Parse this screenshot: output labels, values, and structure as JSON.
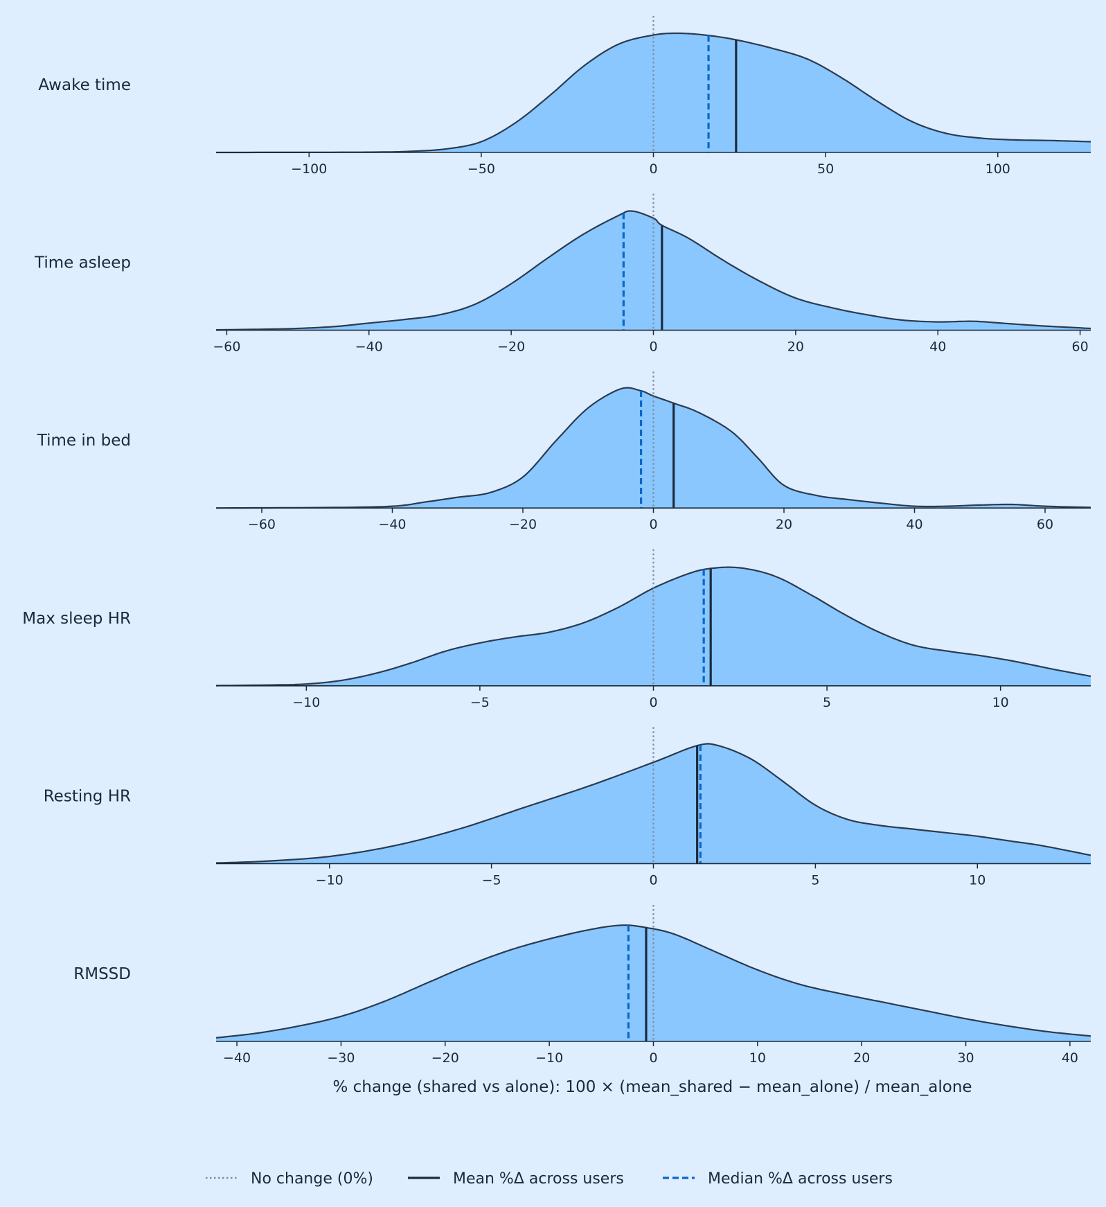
{
  "chart_data": {
    "type": "area",
    "subtype": "ridgeline-density",
    "xlabel": "% change (shared vs alone): 100 × (mean_shared − mean_alone) / mean_alone",
    "reference_line": {
      "x": 0,
      "label": "No change (0%)",
      "style": "dotted",
      "color": "#7f8c99"
    },
    "colors": {
      "fill": "#8ac7ff",
      "outline": "#2b3b50",
      "mean": "#1c2b3c",
      "median": "#0a67c9",
      "background": "#deeeff"
    },
    "legend": {
      "position": "bottom-center",
      "items": [
        {
          "label": "No change (0%)",
          "style": "dotted",
          "color": "#7f8c99"
        },
        {
          "label": "Mean %Δ across users",
          "style": "solid",
          "color": "#1c2b3c"
        },
        {
          "label": "Median %Δ across users",
          "style": "dashed",
          "color": "#0a67c9"
        }
      ]
    },
    "panels": [
      {
        "label": "Awake time",
        "xlim": [
          -127,
          127
        ],
        "ticks": [
          -100,
          -50,
          0,
          50,
          100
        ],
        "tick_labels": [
          "−100",
          "−50",
          "0",
          "50",
          "100"
        ],
        "mean": 24,
        "median": 16,
        "density": [
          [
            -127,
            0
          ],
          [
            -100,
            0.001
          ],
          [
            -80,
            0.003
          ],
          [
            -70,
            0.01
          ],
          [
            -60,
            0.03
          ],
          [
            -50,
            0.09
          ],
          [
            -40,
            0.25
          ],
          [
            -30,
            0.48
          ],
          [
            -20,
            0.73
          ],
          [
            -10,
            0.91
          ],
          [
            0,
            0.985
          ],
          [
            7,
            1
          ],
          [
            15,
            0.985
          ],
          [
            24,
            0.945
          ],
          [
            35,
            0.87
          ],
          [
            45,
            0.78
          ],
          [
            55,
            0.62
          ],
          [
            65,
            0.43
          ],
          [
            75,
            0.26
          ],
          [
            85,
            0.16
          ],
          [
            95,
            0.12
          ],
          [
            105,
            0.105
          ],
          [
            115,
            0.1
          ],
          [
            127,
            0.09
          ]
        ]
      },
      {
        "label": "Time asleep",
        "xlim": [
          -61.5,
          61.5
        ],
        "ticks": [
          -60,
          -40,
          -20,
          0,
          20,
          40,
          60
        ],
        "tick_labels": [
          "−60",
          "−40",
          "−20",
          "0",
          "20",
          "40",
          "60"
        ],
        "mean": 1.2,
        "median": -4.2,
        "density": [
          [
            -61.5,
            0.003
          ],
          [
            -55,
            0.008
          ],
          [
            -50,
            0.015
          ],
          [
            -45,
            0.03
          ],
          [
            -40,
            0.06
          ],
          [
            -35,
            0.09
          ],
          [
            -30,
            0.13
          ],
          [
            -25,
            0.22
          ],
          [
            -20,
            0.39
          ],
          [
            -15,
            0.6
          ],
          [
            -10,
            0.8
          ],
          [
            -5,
            0.96
          ],
          [
            -3,
            1
          ],
          [
            0,
            0.94
          ],
          [
            1.2,
            0.88
          ],
          [
            5,
            0.77
          ],
          [
            10,
            0.58
          ],
          [
            15,
            0.41
          ],
          [
            20,
            0.27
          ],
          [
            25,
            0.19
          ],
          [
            30,
            0.13
          ],
          [
            35,
            0.085
          ],
          [
            40,
            0.07
          ],
          [
            45,
            0.075
          ],
          [
            50,
            0.055
          ],
          [
            55,
            0.035
          ],
          [
            61.5,
            0.015
          ]
        ]
      },
      {
        "label": "Time in bed",
        "xlim": [
          -67,
          67
        ],
        "ticks": [
          -60,
          -40,
          -20,
          0,
          20,
          40,
          60
        ],
        "tick_labels": [
          "−60",
          "−40",
          "−20",
          "0",
          "20",
          "40",
          "60"
        ],
        "mean": 3.1,
        "median": -1.9,
        "density": [
          [
            -67,
            0
          ],
          [
            -50,
            0.004
          ],
          [
            -40,
            0.015
          ],
          [
            -35,
            0.05
          ],
          [
            -30,
            0.09
          ],
          [
            -25,
            0.13
          ],
          [
            -20,
            0.26
          ],
          [
            -15,
            0.56
          ],
          [
            -10,
            0.84
          ],
          [
            -5,
            1
          ],
          [
            -2,
            0.985
          ],
          [
            0,
            0.94
          ],
          [
            3.1,
            0.88
          ],
          [
            7,
            0.8
          ],
          [
            12,
            0.64
          ],
          [
            16,
            0.42
          ],
          [
            20,
            0.19
          ],
          [
            25,
            0.105
          ],
          [
            30,
            0.07
          ],
          [
            35,
            0.04
          ],
          [
            40,
            0.015
          ],
          [
            45,
            0.015
          ],
          [
            50,
            0.025
          ],
          [
            55,
            0.03
          ],
          [
            60,
            0.015
          ],
          [
            67,
            0.005
          ]
        ]
      },
      {
        "label": "Max sleep HR",
        "xlim": [
          -12.6,
          12.6
        ],
        "ticks": [
          -10,
          -5,
          0,
          5,
          10
        ],
        "tick_labels": [
          "−10",
          "−5",
          "0",
          "5",
          "10"
        ],
        "mean": 1.65,
        "median": 1.45,
        "density": [
          [
            -12.6,
            0.002
          ],
          [
            -11,
            0.007
          ],
          [
            -10,
            0.015
          ],
          [
            -9,
            0.045
          ],
          [
            -8,
            0.105
          ],
          [
            -7,
            0.19
          ],
          [
            -6,
            0.29
          ],
          [
            -5,
            0.36
          ],
          [
            -4,
            0.41
          ],
          [
            -3,
            0.45
          ],
          [
            -2,
            0.53
          ],
          [
            -1,
            0.66
          ],
          [
            0,
            0.82
          ],
          [
            1,
            0.94
          ],
          [
            1.65,
            0.985
          ],
          [
            2.5,
            0.99
          ],
          [
            3.5,
            0.92
          ],
          [
            4.5,
            0.77
          ],
          [
            5.5,
            0.6
          ],
          [
            6.5,
            0.45
          ],
          [
            7.5,
            0.34
          ],
          [
            8.5,
            0.29
          ],
          [
            9.5,
            0.25
          ],
          [
            10.5,
            0.2
          ],
          [
            11.5,
            0.14
          ],
          [
            12.6,
            0.08
          ]
        ]
      },
      {
        "label": "Resting HR",
        "xlim": [
          -13.5,
          13.5
        ],
        "ticks": [
          -10,
          -5,
          0,
          5,
          10
        ],
        "tick_labels": [
          "−10",
          "−5",
          "0",
          "5",
          "10"
        ],
        "mean": 1.35,
        "median": 1.45,
        "density": [
          [
            -13.5,
            0.005
          ],
          [
            -12,
            0.02
          ],
          [
            -10,
            0.06
          ],
          [
            -8,
            0.15
          ],
          [
            -6,
            0.29
          ],
          [
            -4,
            0.47
          ],
          [
            -2,
            0.65
          ],
          [
            0,
            0.85
          ],
          [
            1.35,
            0.99
          ],
          [
            2,
            0.99
          ],
          [
            3,
            0.88
          ],
          [
            4,
            0.69
          ],
          [
            5,
            0.49
          ],
          [
            6,
            0.37
          ],
          [
            7,
            0.32
          ],
          [
            8,
            0.29
          ],
          [
            9,
            0.26
          ],
          [
            10,
            0.23
          ],
          [
            11,
            0.19
          ],
          [
            12,
            0.15
          ],
          [
            13.5,
            0.07
          ]
        ]
      },
      {
        "label": "RMSSD",
        "xlim": [
          -42,
          42
        ],
        "ticks": [
          -40,
          -30,
          -20,
          -10,
          0,
          10,
          20,
          30,
          40
        ],
        "tick_labels": [
          "−40",
          "−30",
          "−20",
          "−10",
          "0",
          "10",
          "20",
          "30",
          "40"
        ],
        "mean": -0.7,
        "median": -2.4,
        "density": [
          [
            -42,
            0.03
          ],
          [
            -38,
            0.07
          ],
          [
            -34,
            0.13
          ],
          [
            -30,
            0.21
          ],
          [
            -26,
            0.33
          ],
          [
            -22,
            0.48
          ],
          [
            -18,
            0.63
          ],
          [
            -14,
            0.76
          ],
          [
            -10,
            0.86
          ],
          [
            -6,
            0.94
          ],
          [
            -3,
            0.975
          ],
          [
            -0.7,
            0.955
          ],
          [
            2,
            0.9
          ],
          [
            6,
            0.75
          ],
          [
            10,
            0.6
          ],
          [
            14,
            0.48
          ],
          [
            18,
            0.4
          ],
          [
            22,
            0.33
          ],
          [
            26,
            0.26
          ],
          [
            30,
            0.19
          ],
          [
            34,
            0.13
          ],
          [
            38,
            0.08
          ],
          [
            42,
            0.045
          ]
        ]
      }
    ]
  }
}
